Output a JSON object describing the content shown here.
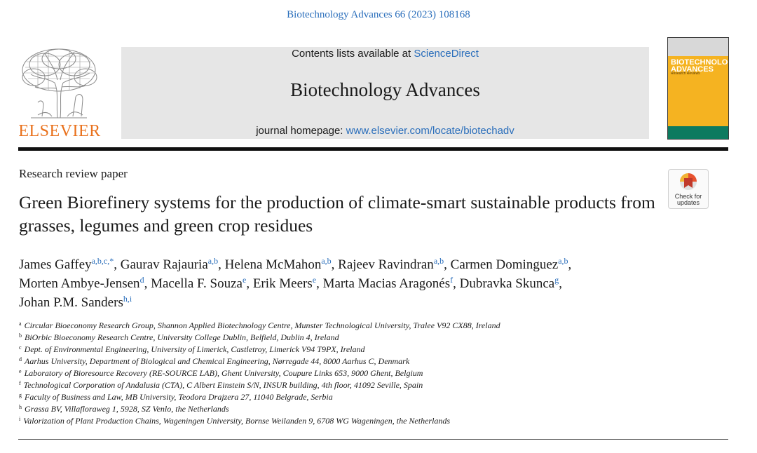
{
  "citation": "Biotechnology Advances 66 (2023) 108168",
  "publisher": {
    "logo_text": "ELSEVIER"
  },
  "banner": {
    "contents_prefix": "Contents lists available at ",
    "contents_link": "ScienceDirect",
    "journal_title": "Biotechnology Advances",
    "homepage_prefix": "journal homepage: ",
    "homepage_link": "www.elsevier.com/locate/biotechadv"
  },
  "cover": {
    "title_line1": "BIOTECHNOLOGY",
    "title_line2": "ADVANCES",
    "subtitle": "Research Reviews"
  },
  "article_type": "Research review paper",
  "check_updates": {
    "line1": "Check for",
    "line2": "updates"
  },
  "title": "Green Biorefinery systems for the production of climate-smart sustainable products from grasses, legumes and green crop residues",
  "authors": [
    {
      "name": "James Gaffey",
      "sup": "a,b,c,*"
    },
    {
      "name": "Gaurav Rajauria",
      "sup": "a,b"
    },
    {
      "name": "Helena McMahon",
      "sup": "a,b"
    },
    {
      "name": "Rajeev Ravindran",
      "sup": "a,b"
    },
    {
      "name": "Carmen Dominguez",
      "sup": "a,b"
    },
    {
      "name": "Morten Ambye-Jensen",
      "sup": "d"
    },
    {
      "name": "Macella F. Souza",
      "sup": "e"
    },
    {
      "name": "Erik Meers",
      "sup": "e"
    },
    {
      "name": "Marta Macias Aragonés",
      "sup": "f"
    },
    {
      "name": "Dubravka Skunca",
      "sup": "g"
    },
    {
      "name": "Johan P.M. Sanders",
      "sup": "h,i"
    }
  ],
  "affiliations": [
    {
      "key": "a",
      "text": "Circular Bioeconomy Research Group, Shannon Applied Biotechnology Centre, Munster Technological University, Tralee V92 CX88, Ireland"
    },
    {
      "key": "b",
      "text": "BiOrbic Bioeconomy Research Centre, University College Dublin, Belfield, Dublin 4, Ireland"
    },
    {
      "key": "c",
      "text": "Dept. of Environmental Engineering, University of Limerick, Castletroy, Limerick V94 T9PX, Ireland"
    },
    {
      "key": "d",
      "text": "Aarhus University, Department of Biological and Chemical Engineering, Nørregade 44, 8000 Aarhus C, Denmark"
    },
    {
      "key": "e",
      "text": "Laboratory of Bioresource Recovery (RE-SOURCE LAB), Ghent University, Coupure Links 653, 9000 Ghent, Belgium"
    },
    {
      "key": "f",
      "text": "Technological Corporation of Andalusia (CTA), C Albert Einstein S/N, INSUR building, 4th floor, 41092 Seville, Spain"
    },
    {
      "key": "g",
      "text": "Faculty of Business and Law, MB University, Teodora Drajzera 27, 11040 Belgrade, Serbia"
    },
    {
      "key": "h",
      "text": "Grassa BV, Villafloraweg 1, 5928, SZ Venlo, the Netherlands"
    },
    {
      "key": "i",
      "text": "Valorization of Plant Production Chains, Wageningen University, Bornse Weilanden 9, 6708 WG Wageningen, the Netherlands"
    }
  ],
  "colors": {
    "link": "#2a6ebb",
    "elsevier_orange": "#e9711c",
    "banner_bg": "#e6e6e6",
    "cover_yellow": "#f5b321"
  }
}
